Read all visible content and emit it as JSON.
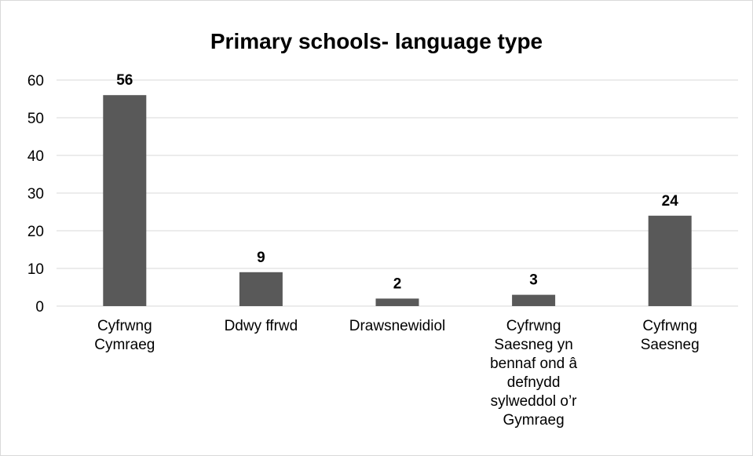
{
  "chart_data": {
    "type": "bar",
    "title": "Primary schools- language type",
    "categories": [
      [
        "Cyfrwng",
        "Cymraeg"
      ],
      [
        "Ddwy ffrwd"
      ],
      [
        "Drawsnewidiol"
      ],
      [
        "Cyfrwng",
        "Saesneg yn",
        "bennaf ond â",
        "defnydd",
        "sylweddol o’r",
        "Gymraeg"
      ],
      [
        "Cyfrwng",
        "Saesneg"
      ]
    ],
    "values": [
      56,
      9,
      2,
      3,
      24
    ],
    "ylim": [
      0,
      60
    ],
    "yticks": [
      0,
      10,
      20,
      30,
      40,
      50,
      60
    ],
    "grid": true,
    "legend": "none",
    "colors": {
      "bar": "#595959",
      "grid": "#d9d9d9",
      "axis": "#d9d9d9"
    }
  }
}
